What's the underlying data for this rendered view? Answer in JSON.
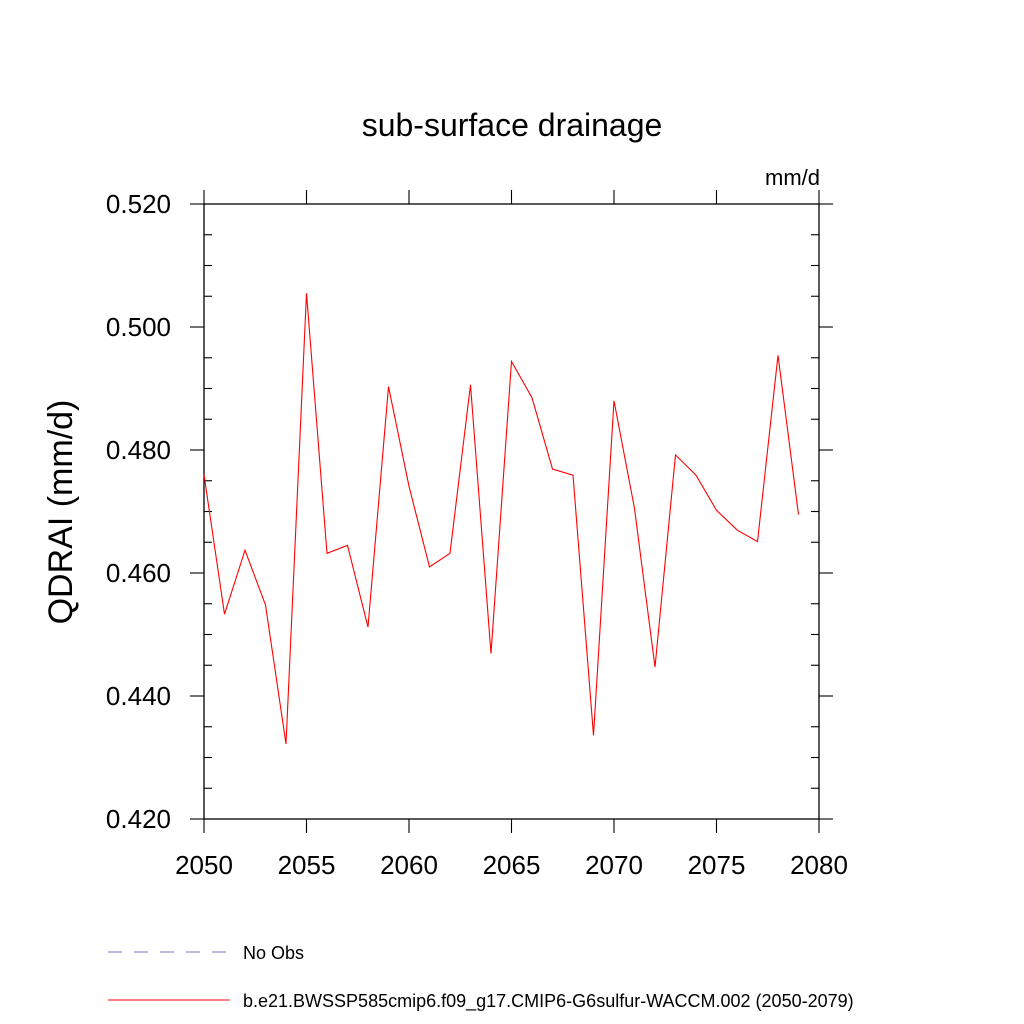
{
  "chart_data": {
    "type": "line",
    "title": "sub-surface drainage",
    "units_label": "mm/d",
    "ylabel": "QDRAI  (mm/d)",
    "xlabel": "",
    "xlim": [
      2050,
      2080
    ],
    "ylim": [
      0.42,
      0.52
    ],
    "x_ticks": [
      2050,
      2055,
      2060,
      2065,
      2070,
      2075,
      2080
    ],
    "x_tick_labels": [
      "2050",
      "2055",
      "2060",
      "2065",
      "2070",
      "2075",
      "2080"
    ],
    "y_ticks": [
      0.42,
      0.44,
      0.46,
      0.48,
      0.5,
      0.52
    ],
    "y_tick_labels": [
      "0.420",
      "0.440",
      "0.460",
      "0.480",
      "0.500",
      "0.520"
    ],
    "grid": false,
    "legend_placement": "bottom",
    "legend": [
      {
        "label": "No Obs",
        "color": "#7f72b8",
        "style": "dashed"
      },
      {
        "label": "b.e21.BWSSP585cmip6.f09_g17.CMIP6-G6sulfur-WACCM.002 (2050-2079)",
        "color": "#ff0000",
        "style": "solid"
      }
    ],
    "series": [
      {
        "name": "b.e21.BWSSP585cmip6.f09_g17.CMIP6-G6sulfur-WACCM.002 (2050-2079)",
        "color": "#ff0000",
        "x": [
          2050,
          2051,
          2052,
          2053,
          2054,
          2055,
          2056,
          2057,
          2058,
          2059,
          2060,
          2061,
          2062,
          2063,
          2064,
          2065,
          2066,
          2067,
          2068,
          2069,
          2070,
          2071,
          2072,
          2073,
          2074,
          2075,
          2076,
          2077,
          2078,
          2079
        ],
        "values": [
          0.476,
          0.4533,
          0.4637,
          0.4548,
          0.4322,
          0.5055,
          0.4632,
          0.4645,
          0.4512,
          0.4903,
          0.4741,
          0.461,
          0.4632,
          0.4906,
          0.4469,
          0.4944,
          0.4885,
          0.4769,
          0.4759,
          0.4336,
          0.488,
          0.4705,
          0.4447,
          0.4792,
          0.4759,
          0.4702,
          0.467,
          0.4651,
          0.4954,
          0.4695
        ]
      }
    ]
  }
}
